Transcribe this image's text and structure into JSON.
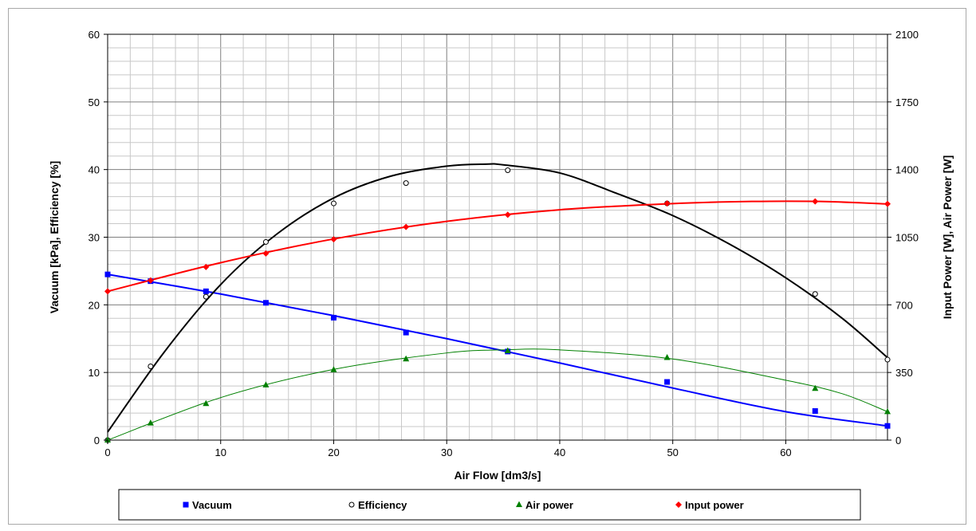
{
  "chart_data": {
    "type": "scatter",
    "title": "",
    "xlabel": "Air Flow [dm3/s]",
    "ylabel": "Vacuum [kPa], Efficiency [%]",
    "y2label": "Input Power [W], Air Power [W]",
    "xlim": [
      0,
      69
    ],
    "ylim": [
      0,
      60
    ],
    "y2lim": [
      0,
      2100
    ],
    "x_ticks": [
      "0",
      "10",
      "20",
      "30",
      "40",
      "50",
      "60"
    ],
    "y_ticks": [
      "0",
      "10",
      "20",
      "30",
      "40",
      "50",
      "60"
    ],
    "y2_ticks": [
      "0",
      "350",
      "700",
      "1050",
      "1400",
      "1750",
      "2100"
    ],
    "grid": true,
    "legend_position": "bottom",
    "series": [
      {
        "name": "Vacuum",
        "axis": "left",
        "marker": "square",
        "color": "#0000ff",
        "x": [
          0,
          3.8,
          8.7,
          14.0,
          20.0,
          26.4,
          35.4,
          49.5,
          62.6,
          69.0
        ],
        "y": [
          24.5,
          23.5,
          22.0,
          20.3,
          18.1,
          15.9,
          13.1,
          8.6,
          4.3,
          2.1
        ],
        "trend": [
          [
            0,
            24.5
          ],
          [
            10,
            21.6
          ],
          [
            20,
            18.4
          ],
          [
            30,
            15.0
          ],
          [
            40,
            11.4
          ],
          [
            50,
            7.7
          ],
          [
            60,
            4.2
          ],
          [
            69,
            2.1
          ]
        ],
        "trend_width": 2
      },
      {
        "name": "Efficiency",
        "axis": "left",
        "marker": "circle-open",
        "color": "#000000",
        "x": [
          0,
          3.8,
          8.7,
          14.0,
          20.0,
          26.4,
          35.4,
          49.5,
          62.6,
          69.0
        ],
        "y": [
          0,
          10.9,
          21.2,
          29.3,
          35.0,
          38.0,
          39.9,
          35.0,
          21.6,
          11.9
        ],
        "trend": [
          [
            0,
            1.2
          ],
          [
            5,
            13.0
          ],
          [
            10,
            23.0
          ],
          [
            15,
            30.5
          ],
          [
            20,
            35.8
          ],
          [
            25,
            39.0
          ],
          [
            30,
            40.5
          ],
          [
            33.5,
            40.8
          ],
          [
            35,
            40.7
          ],
          [
            40,
            39.5
          ],
          [
            45,
            36.5
          ],
          [
            50,
            33.2
          ],
          [
            55,
            29.0
          ],
          [
            60,
            24.0
          ],
          [
            65,
            18.0
          ],
          [
            69,
            12.2
          ]
        ],
        "trend_width": 2
      },
      {
        "name": "Air power",
        "axis": "right",
        "marker": "triangle",
        "color": "#008000",
        "x": [
          0,
          3.8,
          8.7,
          14.0,
          20.0,
          26.4,
          35.4,
          49.5,
          62.6,
          69.0
        ],
        "y": [
          0,
          88,
          189,
          285,
          364,
          420,
          462,
          427,
          267,
          147
        ],
        "trend": [
          [
            0,
            0
          ],
          [
            10,
            220
          ],
          [
            20,
            366
          ],
          [
            30,
            451
          ],
          [
            35,
            467
          ],
          [
            40,
            467
          ],
          [
            50,
            420
          ],
          [
            60,
            310
          ],
          [
            65,
            240
          ],
          [
            69,
            147
          ]
        ],
        "trend_width": 1
      },
      {
        "name": "Input power",
        "axis": "right",
        "marker": "diamond",
        "color": "#ff0000",
        "x": [
          0,
          3.8,
          8.7,
          14.0,
          20.0,
          26.4,
          35.4,
          49.5,
          62.6,
          69.0
        ],
        "y": [
          770,
          826,
          896,
          966,
          1039,
          1103,
          1166,
          1225,
          1235,
          1222
        ],
        "trend": [
          [
            0,
            770
          ],
          [
            10,
            918
          ],
          [
            20,
            1041
          ],
          [
            30,
            1132
          ],
          [
            40,
            1192
          ],
          [
            50,
            1224
          ],
          [
            57,
            1235
          ],
          [
            63,
            1235
          ],
          [
            69,
            1222
          ]
        ],
        "trend_width": 2
      }
    ]
  }
}
